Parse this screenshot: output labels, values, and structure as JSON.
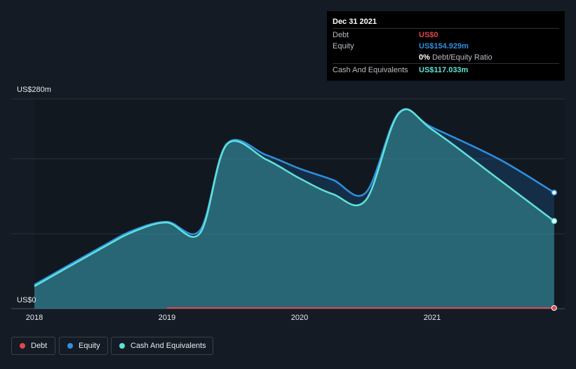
{
  "tooltip": {
    "date": "Dec 31 2021",
    "debt_label": "Debt",
    "debt_value": "US$0",
    "equity_label": "Equity",
    "equity_value": "US$154.929m",
    "ratio_value": "0%",
    "ratio_label": "Debt/Equity Ratio",
    "cash_label": "Cash And Equivalents",
    "cash_value": "US$117.033m"
  },
  "colors": {
    "debt": "#e0474f",
    "equity": "#2f8fe0",
    "cash": "#5fe2d6",
    "background": "#151b24"
  },
  "legend": [
    {
      "name": "Debt",
      "color": "#e0474f"
    },
    {
      "name": "Equity",
      "color": "#2f8fe0"
    },
    {
      "name": "Cash And Equivalents",
      "color": "#5fe2d6"
    }
  ],
  "chart_data": {
    "type": "area",
    "y_top_label": "US$280m",
    "y_bottom_label": "US$0",
    "ylim": [
      0,
      280
    ],
    "xlim": [
      2018,
      2022
    ],
    "x_ticks": [
      "2018",
      "2019",
      "2020",
      "2021"
    ],
    "x_tick_values": [
      2018,
      2019,
      2020,
      2021
    ],
    "series": [
      {
        "name": "Equity",
        "x": [
          2018.0,
          2018.5,
          2018.75,
          2019.0,
          2019.25,
          2019.45,
          2019.75,
          2020.0,
          2020.25,
          2020.5,
          2020.75,
          2021.0,
          2021.5,
          2021.92
        ],
        "values": [
          32,
          82,
          105,
          116,
          105,
          220,
          205,
          187,
          172,
          155,
          262,
          242,
          200,
          155
        ]
      },
      {
        "name": "Cash And Equivalents",
        "x": [
          2018.0,
          2018.5,
          2018.75,
          2019.0,
          2019.25,
          2019.45,
          2019.75,
          2020.0,
          2020.25,
          2020.5,
          2020.75,
          2021.0,
          2021.5,
          2021.92
        ],
        "values": [
          30,
          80,
          103,
          115,
          101,
          219,
          199,
          174,
          153,
          145,
          261,
          239,
          173,
          117
        ]
      },
      {
        "name": "Debt",
        "x": [
          2019.0,
          2021.92
        ],
        "values": [
          0,
          0
        ]
      }
    ]
  }
}
